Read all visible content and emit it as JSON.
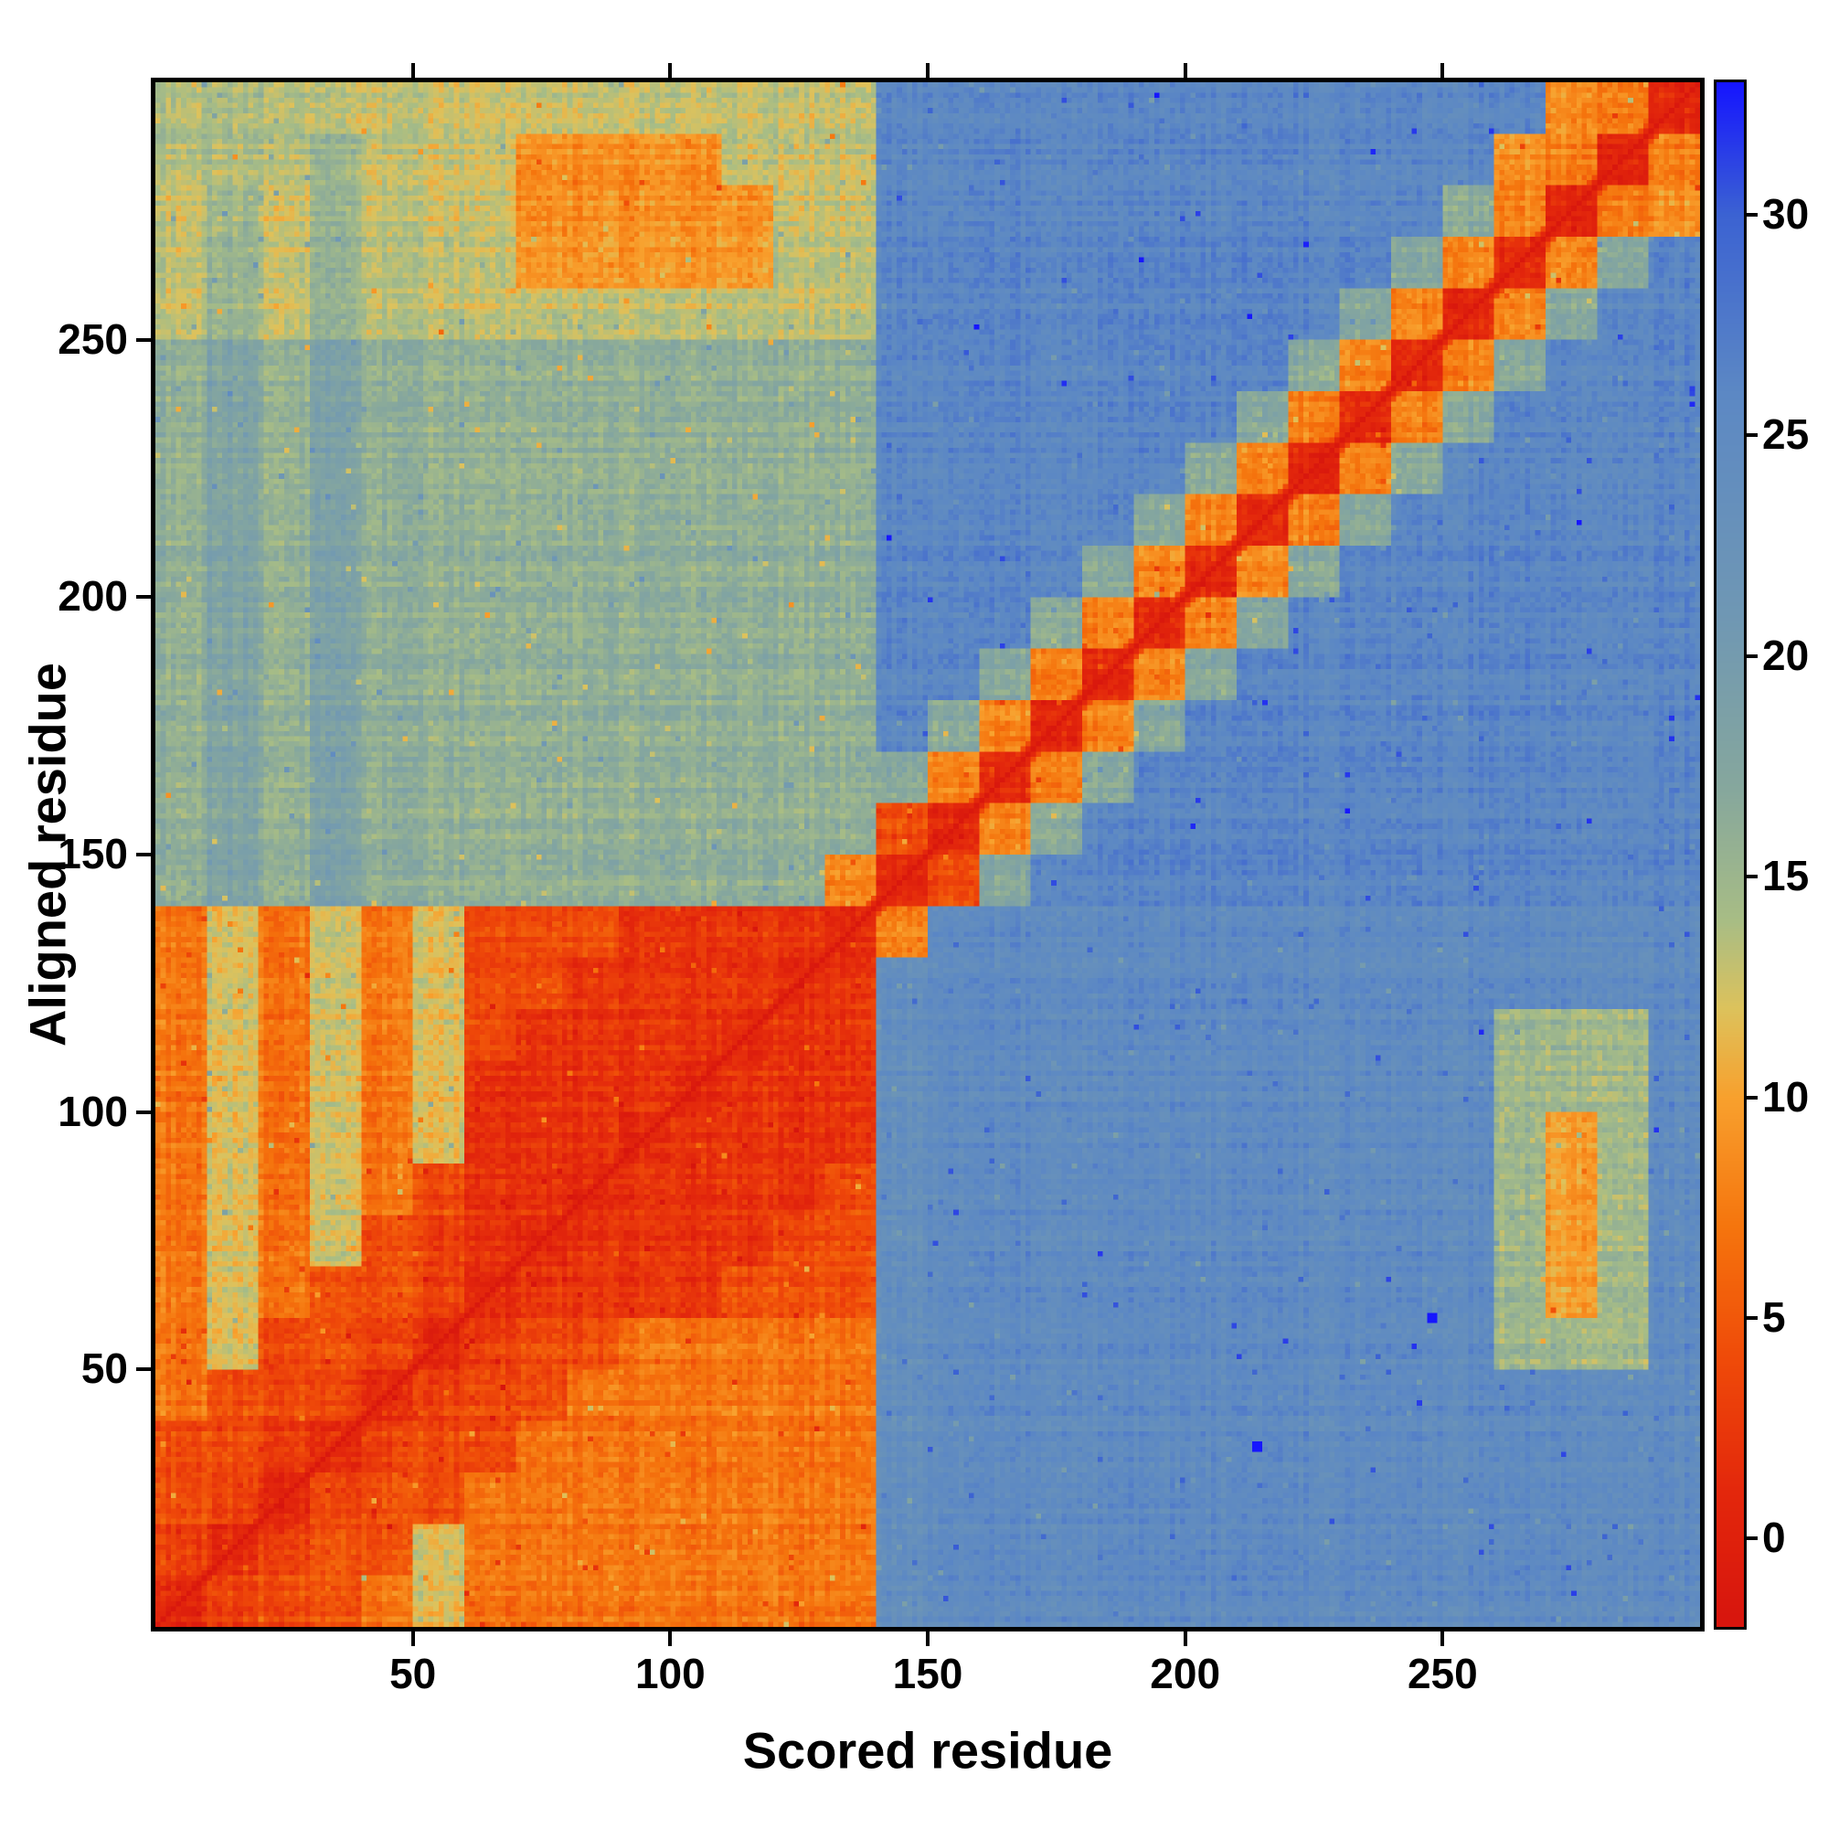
{
  "chart_data": {
    "type": "heatmap",
    "xlabel": "Scored residue",
    "ylabel": "Aligned residue",
    "x_range": [
      1,
      300
    ],
    "y_range": [
      1,
      300
    ],
    "x_ticks": [
      50,
      100,
      150,
      200,
      250
    ],
    "y_ticks": [
      50,
      100,
      150,
      200,
      250
    ],
    "grid_on": false,
    "colorbar": {
      "ticks": [
        0,
        5,
        10,
        15,
        20,
        25,
        30
      ],
      "range": [
        -2,
        33
      ],
      "position": "right"
    },
    "colormap_stops": [
      {
        "v": -2,
        "c": "#d7150d"
      },
      {
        "v": 1,
        "c": "#e3270c"
      },
      {
        "v": 4,
        "c": "#ef4a09"
      },
      {
        "v": 7,
        "c": "#f5740d"
      },
      {
        "v": 10,
        "c": "#f8a12e"
      },
      {
        "v": 12,
        "c": "#ddc25c"
      },
      {
        "v": 14,
        "c": "#a8bd85"
      },
      {
        "v": 17,
        "c": "#86a79d"
      },
      {
        "v": 21,
        "c": "#6f97b4"
      },
      {
        "v": 26,
        "c": "#5c88c4"
      },
      {
        "v": 30,
        "c": "#3c63d2"
      },
      {
        "v": 33,
        "c": "#1616ff"
      }
    ],
    "bin_size": 10,
    "grid_rows_bottom_to_top": [
      [
        1,
        3,
        4,
        4,
        7,
        12,
        7,
        7,
        7,
        7,
        7,
        7,
        7,
        7,
        24,
        25,
        25,
        25,
        25,
        25,
        25,
        25,
        25,
        25,
        25,
        25,
        25,
        25,
        25,
        25
      ],
      [
        3,
        1,
        3,
        4,
        4,
        12,
        7,
        7,
        7,
        7,
        7,
        7,
        7,
        7,
        24,
        25,
        25,
        25,
        25,
        25,
        25,
        25,
        25,
        25,
        25,
        25,
        25,
        25,
        25,
        25
      ],
      [
        4,
        3,
        1,
        3,
        4,
        4,
        7,
        7,
        7,
        7,
        7,
        7,
        7,
        7,
        24,
        25,
        25,
        25,
        25,
        25,
        25,
        25,
        25,
        25,
        25,
        25,
        25,
        25,
        25,
        25
      ],
      [
        4,
        4,
        3,
        1,
        3,
        4,
        4,
        7,
        7,
        7,
        7,
        7,
        7,
        7,
        24,
        25,
        25,
        25,
        25,
        25,
        25,
        25,
        25,
        25,
        25,
        25,
        25,
        25,
        25,
        25
      ],
      [
        7,
        4,
        4,
        3,
        1,
        3,
        4,
        4,
        7,
        7,
        7,
        7,
        7,
        7,
        24,
        25,
        25,
        25,
        25,
        25,
        25,
        25,
        25,
        25,
        25,
        25,
        25,
        25,
        25,
        25
      ],
      [
        7,
        12,
        4,
        4,
        3,
        1,
        3,
        4,
        4,
        7,
        7,
        7,
        7,
        7,
        24,
        25,
        25,
        25,
        25,
        25,
        25,
        25,
        25,
        25,
        25,
        25,
        15,
        15,
        15,
        25
      ],
      [
        7,
        12,
        7,
        4,
        4,
        3,
        1,
        2,
        2,
        2,
        2,
        4,
        4,
        4,
        24,
        25,
        25,
        25,
        25,
        25,
        25,
        25,
        25,
        25,
        25,
        25,
        15,
        10,
        15,
        25
      ],
      [
        7,
        12,
        7,
        12,
        4,
        3,
        2,
        1,
        2,
        2,
        2,
        2,
        4,
        4,
        24,
        25,
        25,
        25,
        25,
        25,
        25,
        25,
        25,
        25,
        25,
        25,
        15,
        10,
        15,
        25
      ],
      [
        7,
        12,
        7,
        12,
        7,
        4,
        2,
        2,
        1,
        2,
        2,
        2,
        2,
        4,
        24,
        25,
        25,
        25,
        25,
        25,
        25,
        25,
        25,
        25,
        25,
        25,
        15,
        10,
        15,
        25
      ],
      [
        7,
        12,
        7,
        12,
        7,
        12,
        2,
        2,
        2,
        1,
        2,
        2,
        2,
        2,
        24,
        25,
        25,
        25,
        25,
        25,
        25,
        25,
        25,
        25,
        25,
        25,
        15,
        10,
        15,
        25
      ],
      [
        7,
        12,
        7,
        12,
        7,
        12,
        2,
        2,
        2,
        2,
        1,
        2,
        2,
        2,
        24,
        25,
        25,
        25,
        25,
        25,
        25,
        25,
        25,
        25,
        25,
        25,
        15,
        15,
        15,
        25
      ],
      [
        7,
        12,
        7,
        12,
        7,
        12,
        4,
        2,
        2,
        2,
        2,
        1,
        2,
        2,
        24,
        25,
        25,
        25,
        25,
        25,
        25,
        25,
        25,
        25,
        25,
        25,
        15,
        15,
        15,
        25
      ],
      [
        7,
        12,
        7,
        12,
        7,
        12,
        4,
        4,
        2,
        2,
        2,
        2,
        1,
        2,
        24,
        25,
        25,
        25,
        25,
        25,
        25,
        25,
        25,
        25,
        25,
        25,
        25,
        25,
        25,
        25
      ],
      [
        7,
        12,
        7,
        12,
        7,
        12,
        4,
        4,
        4,
        2,
        2,
        2,
        2,
        1,
        8,
        25,
        25,
        25,
        25,
        25,
        25,
        25,
        25,
        25,
        25,
        25,
        25,
        25,
        25,
        25
      ],
      [
        16,
        18,
        16,
        18,
        16,
        16,
        16,
        16,
        16,
        16,
        16,
        16,
        16,
        8,
        1,
        4,
        17,
        26,
        26,
        26,
        26,
        26,
        26,
        26,
        26,
        26,
        26,
        26,
        26,
        26
      ],
      [
        16,
        18,
        16,
        18,
        16,
        16,
        16,
        16,
        16,
        16,
        16,
        16,
        16,
        16,
        4,
        1,
        8,
        17,
        26,
        26,
        26,
        26,
        26,
        26,
        26,
        26,
        26,
        26,
        26,
        26
      ],
      [
        16,
        18,
        16,
        18,
        16,
        16,
        16,
        16,
        16,
        16,
        16,
        16,
        16,
        16,
        17,
        8,
        1,
        8,
        17,
        26,
        26,
        26,
        26,
        26,
        26,
        26,
        26,
        26,
        26,
        26
      ],
      [
        16,
        18,
        16,
        18,
        16,
        16,
        16,
        16,
        16,
        16,
        16,
        16,
        16,
        16,
        26,
        17,
        8,
        1,
        8,
        17,
        26,
        26,
        26,
        26,
        26,
        26,
        26,
        26,
        26,
        26
      ],
      [
        16,
        18,
        16,
        18,
        16,
        16,
        16,
        16,
        16,
        16,
        16,
        16,
        16,
        16,
        26,
        26,
        17,
        8,
        1,
        8,
        17,
        26,
        26,
        26,
        26,
        26,
        26,
        26,
        26,
        26
      ],
      [
        16,
        18,
        16,
        18,
        16,
        16,
        16,
        16,
        16,
        16,
        16,
        16,
        16,
        16,
        26,
        26,
        26,
        17,
        8,
        1,
        8,
        17,
        26,
        26,
        26,
        26,
        26,
        26,
        26,
        26
      ],
      [
        16,
        18,
        16,
        18,
        16,
        16,
        16,
        16,
        16,
        16,
        16,
        16,
        16,
        16,
        26,
        26,
        26,
        26,
        17,
        8,
        1,
        8,
        17,
        26,
        26,
        26,
        26,
        26,
        26,
        26
      ],
      [
        16,
        18,
        16,
        18,
        16,
        16,
        16,
        16,
        16,
        16,
        16,
        16,
        16,
        16,
        26,
        26,
        26,
        26,
        26,
        17,
        8,
        1,
        8,
        17,
        26,
        26,
        26,
        26,
        26,
        26
      ],
      [
        16,
        18,
        16,
        18,
        16,
        16,
        16,
        16,
        16,
        16,
        16,
        16,
        16,
        16,
        26,
        26,
        26,
        26,
        26,
        26,
        17,
        8,
        1,
        8,
        17,
        26,
        26,
        26,
        26,
        26
      ],
      [
        16,
        18,
        16,
        18,
        16,
        16,
        16,
        16,
        16,
        16,
        16,
        16,
        16,
        16,
        26,
        26,
        26,
        26,
        26,
        26,
        26,
        17,
        8,
        1,
        8,
        17,
        26,
        26,
        26,
        26
      ],
      [
        16,
        18,
        16,
        18,
        16,
        16,
        16,
        16,
        16,
        16,
        16,
        16,
        16,
        16,
        26,
        26,
        26,
        26,
        26,
        26,
        26,
        26,
        17,
        8,
        1,
        8,
        17,
        26,
        26,
        26
      ],
      [
        13,
        15,
        13,
        15,
        13,
        13,
        13,
        13,
        13,
        13,
        13,
        13,
        13,
        13,
        26,
        26,
        26,
        26,
        26,
        26,
        26,
        26,
        26,
        17,
        8,
        1,
        8,
        17,
        26,
        26
      ],
      [
        13,
        15,
        13,
        15,
        13,
        13,
        13,
        9,
        9,
        9,
        9,
        9,
        13,
        13,
        26,
        26,
        26,
        26,
        26,
        26,
        26,
        26,
        26,
        26,
        17,
        8,
        1,
        8,
        17,
        26
      ],
      [
        13,
        15,
        13,
        15,
        13,
        13,
        13,
        9,
        9,
        9,
        9,
        9,
        13,
        13,
        26,
        26,
        26,
        26,
        26,
        26,
        26,
        26,
        26,
        26,
        26,
        17,
        8,
        1,
        8,
        9
      ],
      [
        14,
        14,
        14,
        15,
        13,
        13,
        13,
        9,
        9,
        9,
        9,
        13,
        13,
        13,
        26,
        26,
        26,
        26,
        26,
        26,
        26,
        26,
        26,
        26,
        26,
        26,
        9,
        8,
        1,
        8
      ],
      [
        14,
        14,
        14,
        13,
        13,
        13,
        13,
        13,
        13,
        13,
        13,
        13,
        13,
        13,
        26,
        26,
        26,
        26,
        26,
        26,
        26,
        26,
        26,
        26,
        26,
        26,
        26,
        9,
        8,
        1
      ]
    ],
    "outliers_blue": [
      {
        "x": 213,
        "y": 34
      },
      {
        "x": 247,
        "y": 59
      }
    ]
  }
}
